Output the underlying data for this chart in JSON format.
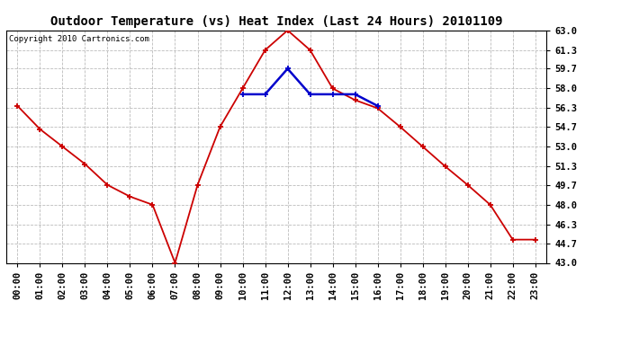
{
  "title": "Outdoor Temperature (vs) Heat Index (Last 24 Hours) 20101109",
  "copyright": "Copyright 2010 Cartronics.com",
  "hours": [
    "00:00",
    "01:00",
    "02:00",
    "03:00",
    "04:00",
    "05:00",
    "06:00",
    "07:00",
    "08:00",
    "09:00",
    "10:00",
    "11:00",
    "12:00",
    "13:00",
    "14:00",
    "15:00",
    "16:00",
    "17:00",
    "18:00",
    "19:00",
    "20:00",
    "21:00",
    "22:00",
    "23:00"
  ],
  "temp": [
    56.5,
    54.5,
    53.0,
    51.5,
    49.7,
    48.7,
    48.0,
    43.0,
    49.7,
    54.7,
    58.0,
    61.3,
    63.0,
    61.3,
    58.0,
    57.0,
    56.3,
    54.7,
    53.0,
    51.3,
    49.7,
    48.0,
    45.0,
    45.0
  ],
  "heat_index": [
    null,
    null,
    null,
    null,
    null,
    null,
    null,
    null,
    null,
    null,
    57.5,
    57.5,
    59.7,
    57.5,
    57.5,
    57.5,
    56.5,
    null,
    null,
    null,
    null,
    null,
    null,
    null
  ],
  "temp_color": "#cc0000",
  "heat_color": "#0000cc",
  "bg_color": "#ffffff",
  "plot_bg": "#ffffff",
  "grid_color": "#bbbbbb",
  "ylim": [
    43.0,
    63.0
  ],
  "yticks": [
    43.0,
    44.7,
    46.3,
    48.0,
    49.7,
    51.3,
    53.0,
    54.7,
    56.3,
    58.0,
    59.7,
    61.3,
    63.0
  ],
  "title_fontsize": 10,
  "copyright_fontsize": 6.5,
  "tick_fontsize": 7.5
}
